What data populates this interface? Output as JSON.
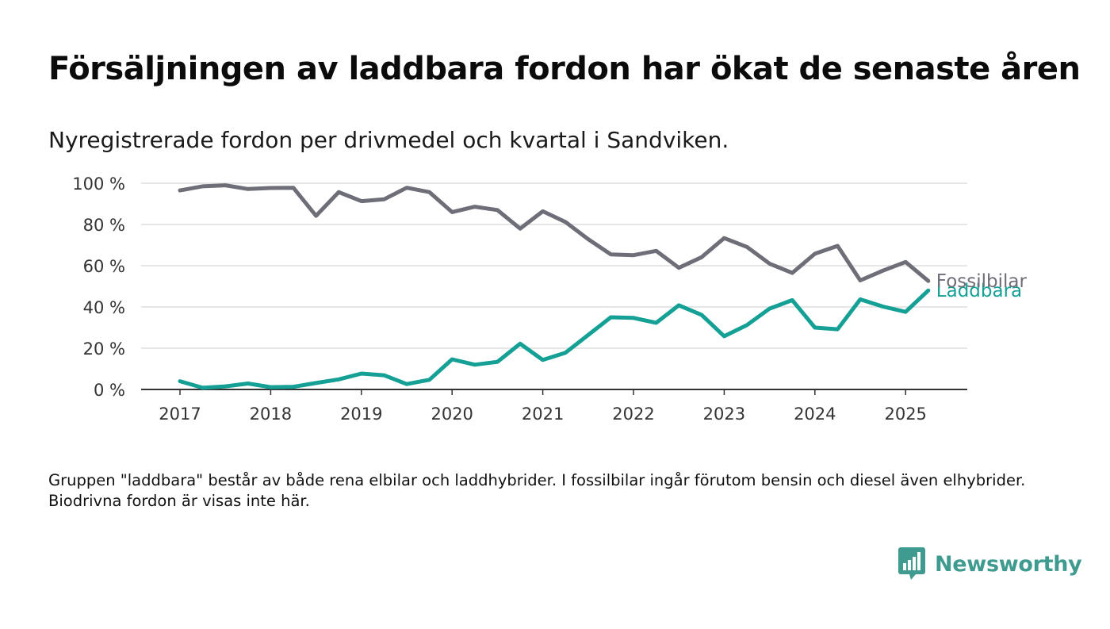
{
  "header": {
    "title": "Försäljningen av laddbara fordon har ökat de senaste åren",
    "subtitle": "Nyregistrerade fordon per drivmedel och kvartal i Sandviken."
  },
  "footer": {
    "note": "Gruppen \"laddbara\" består av både rena elbilar och laddhybrider. I fossilbilar ingår förutom bensin och diesel även elhybrider. Biodrivna fordon är visas inte här.",
    "brand": "Newsworthy",
    "brand_icon": "bar-chart-speech-bubble-icon"
  },
  "chart_data": {
    "type": "line",
    "title": "Försäljningen av laddbara fordon har ökat de senaste åren",
    "subtitle": "Nyregistrerade fordon per drivmedel och kvartal i Sandviken.",
    "x_ticks": [
      "2017",
      "2018",
      "2019",
      "2020",
      "2021",
      "2022",
      "2023",
      "2024",
      "2025"
    ],
    "y_ticks": [
      "0 %",
      "20 %",
      "40 %",
      "60 %",
      "80 %",
      "100 %"
    ],
    "ylim": [
      0,
      100
    ],
    "xlim": [
      "2016-Q3",
      "2025-Q4"
    ],
    "grid": true,
    "x": [
      "2017-Q1",
      "2017-Q2",
      "2017-Q3",
      "2017-Q4",
      "2018-Q1",
      "2018-Q2",
      "2018-Q3",
      "2018-Q4",
      "2019-Q1",
      "2019-Q2",
      "2019-Q3",
      "2019-Q4",
      "2020-Q1",
      "2020-Q2",
      "2020-Q3",
      "2020-Q4",
      "2021-Q1",
      "2021-Q2",
      "2021-Q3",
      "2021-Q4",
      "2022-Q1",
      "2022-Q2",
      "2022-Q3",
      "2022-Q4",
      "2023-Q1",
      "2023-Q2",
      "2023-Q3",
      "2023-Q4",
      "2024-Q1",
      "2024-Q2",
      "2024-Q3",
      "2024-Q4",
      "2025-Q1",
      "2025-Q2"
    ],
    "series": [
      {
        "name": "Fossilbilar",
        "color": "#6e6e78",
        "values": [
          96.5,
          98.5,
          99,
          97.2,
          97.7,
          97.8,
          84.2,
          95.7,
          91.3,
          92.2,
          97.8,
          95.7,
          86,
          88.6,
          87,
          78,
          86.4,
          81.2,
          72.9,
          65.5,
          65.1,
          67.2,
          59,
          64.1,
          73.4,
          69.1,
          61,
          56.5,
          65.8,
          69.6,
          52.9,
          57.6,
          61.8,
          52.6
        ]
      },
      {
        "name": "Laddbara",
        "color": "#15a095",
        "values": [
          4,
          0.8,
          1.5,
          2.9,
          1.1,
          1.3,
          3.1,
          4.9,
          7.7,
          6.9,
          2.6,
          4.7,
          14.6,
          12,
          13.4,
          22.2,
          14.3,
          17.8,
          26.4,
          35,
          34.7,
          32.3,
          40.8,
          36.2,
          25.8,
          31.2,
          39.2,
          43.3,
          30,
          29.2,
          43.7,
          40.2,
          37.6,
          48
        ]
      }
    ]
  }
}
